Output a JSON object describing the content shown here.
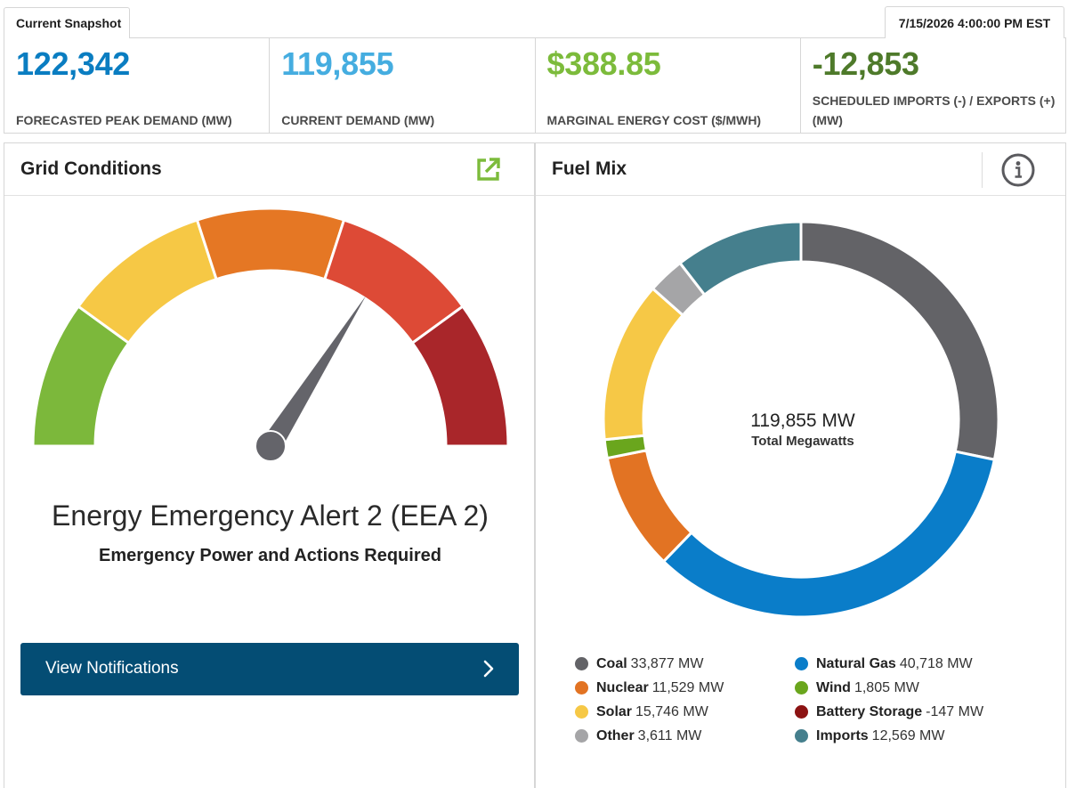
{
  "snapshot": {
    "tab_label": "Current Snapshot",
    "timestamp": "7/15/2026 4:00:00 PM EST"
  },
  "metrics": [
    {
      "value": "122,342",
      "label": "FORECASTED PEAK DEMAND (MW)",
      "color": "#0a7dc1"
    },
    {
      "value": "119,855",
      "label": "CURRENT DEMAND (MW)",
      "color": "#45ade0"
    },
    {
      "value": "$388.85",
      "label": "MARGINAL ENERGY COST ($/MWH)",
      "color": "#7cbb3b"
    },
    {
      "value": "-12,853",
      "label": "SCHEDULED IMPORTS (-) / EXPORTS (+) (MW)",
      "color": "#4e7a2a"
    }
  ],
  "grid_conditions": {
    "title": "Grid Conditions",
    "open_icon": "external-link-icon",
    "gauge": {
      "segments": [
        {
          "color": "#7cb83b"
        },
        {
          "color": "#f6c845"
        },
        {
          "color": "#e57724"
        },
        {
          "color": "#dd4a36"
        },
        {
          "color": "#a9262a"
        }
      ],
      "needle_level": 0.68,
      "needle_color": "#64646a"
    },
    "alert_title": "Energy Emergency Alert 2 (EEA 2)",
    "alert_subtitle": "Emergency Power and Actions Required",
    "button_label": "View Notifications",
    "button_icon": "chevron-right-icon"
  },
  "fuel_mix": {
    "title": "Fuel Mix",
    "info_icon": "info-icon",
    "total_value": "119,855 MW",
    "total_label": "Total Megawatts",
    "legend": [
      {
        "name": "Coal",
        "value": "33,877 MW",
        "mw": 33877,
        "color": "#636367"
      },
      {
        "name": "Natural Gas",
        "value": "40,718 MW",
        "mw": 40718,
        "color": "#0a7dc9"
      },
      {
        "name": "Nuclear",
        "value": "11,529 MW",
        "mw": 11529,
        "color": "#e27323"
      },
      {
        "name": "Wind",
        "value": "1,805 MW",
        "mw": 1805,
        "color": "#6aa61d"
      },
      {
        "name": "Solar",
        "value": "15,746 MW",
        "mw": 15746,
        "color": "#f6c846"
      },
      {
        "name": "Battery Storage",
        "value": "-147 MW",
        "mw": -147,
        "color": "#8c1313"
      },
      {
        "name": "Other",
        "value": "3,611 MW",
        "mw": 3611,
        "color": "#a5a5a7"
      },
      {
        "name": "Imports",
        "value": "12,569 MW",
        "mw": 12569,
        "color": "#457f8d"
      }
    ],
    "ring_order": [
      "Coal",
      "Natural Gas",
      "Nuclear",
      "Wind",
      "Solar",
      "Other",
      "Imports"
    ]
  }
}
